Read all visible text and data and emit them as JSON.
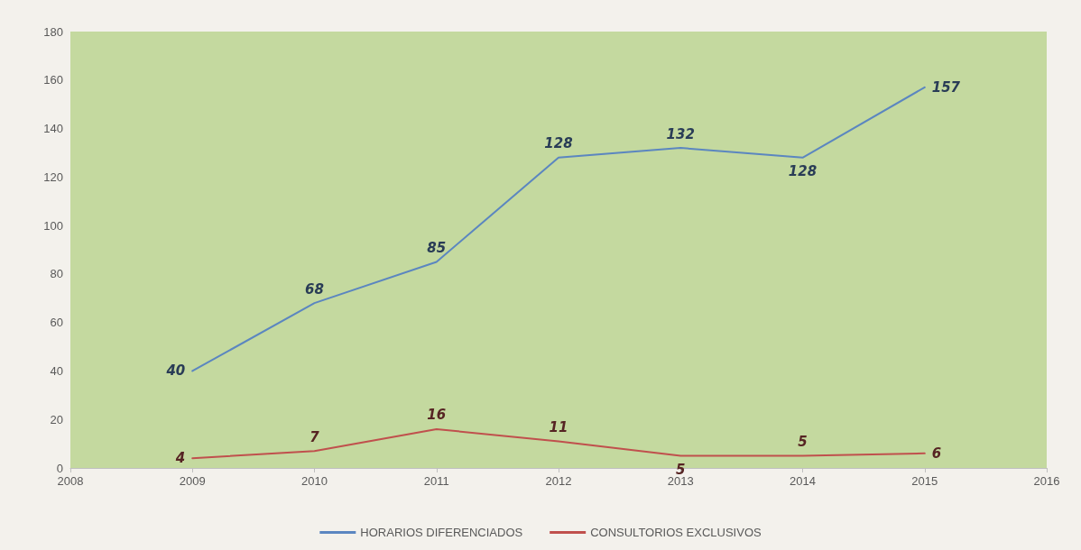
{
  "chart_data": {
    "type": "line",
    "x": [
      2009,
      2010,
      2011,
      2012,
      2013,
      2014,
      2015
    ],
    "series": [
      {
        "name": "HORARIOS DIFERENCIADOS",
        "color": "#5b86c0",
        "values": [
          40,
          68,
          85,
          128,
          132,
          128,
          157
        ]
      },
      {
        "name": "CONSULTORIOS EXCLUSIVOS",
        "color": "#c0504d",
        "values": [
          4,
          7,
          16,
          11,
          5,
          5,
          6
        ]
      }
    ],
    "xlim": [
      2008,
      2016
    ],
    "xticks": [
      2008,
      2009,
      2010,
      2011,
      2012,
      2013,
      2014,
      2015,
      2016
    ],
    "ylim": [
      0,
      180
    ],
    "yticks": [
      0,
      20,
      40,
      60,
      80,
      100,
      120,
      140,
      160,
      180
    ],
    "grid": false,
    "legend": "bottom",
    "marker": "none",
    "line_style": "solid",
    "data_labels": true
  }
}
